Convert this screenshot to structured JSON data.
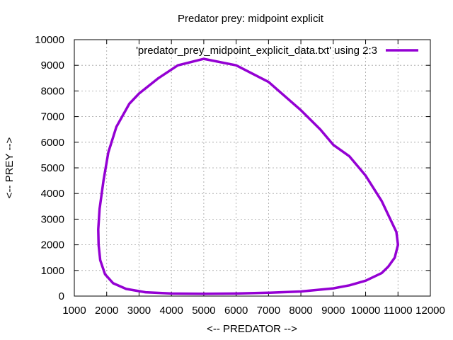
{
  "chart_data": {
    "type": "line",
    "title": "Predator prey: midpoint explicit",
    "xlabel": "<-- PREDATOR -->",
    "ylabel": "<-- PREY -->",
    "xlim": [
      1000,
      12000
    ],
    "ylim": [
      0,
      10000
    ],
    "xticks": [
      1000,
      2000,
      3000,
      4000,
      5000,
      6000,
      7000,
      8000,
      9000,
      10000,
      11000,
      12000
    ],
    "yticks": [
      0,
      1000,
      2000,
      3000,
      4000,
      5000,
      6000,
      7000,
      8000,
      9000,
      10000
    ],
    "grid": true,
    "legend_position": "top-right",
    "series": [
      {
        "name": "'predator_prey_midpoint_explicit_data.txt' using 2:3",
        "color": "#9400d3",
        "x": [
          5000,
          6000,
          7000,
          8000,
          8600,
          9000,
          9500,
          10000,
          10500,
          10800,
          10950,
          11000,
          10900,
          10700,
          10500,
          10000,
          9500,
          9000,
          8000,
          7000,
          6000,
          5000,
          4000,
          3200,
          2600,
          2200,
          1950,
          1800,
          1750,
          1740,
          1780,
          1900,
          2050,
          2300,
          2700,
          3000,
          3600,
          4200,
          5000
        ],
        "y": [
          9250,
          9000,
          8350,
          7250,
          6500,
          5900,
          5450,
          4700,
          3700,
          2900,
          2500,
          2000,
          1500,
          1150,
          900,
          600,
          420,
          300,
          180,
          130,
          100,
          90,
          100,
          150,
          280,
          500,
          850,
          1400,
          2000,
          2600,
          3400,
          4500,
          5600,
          6600,
          7500,
          7900,
          8500,
          9000,
          9250
        ]
      }
    ]
  }
}
